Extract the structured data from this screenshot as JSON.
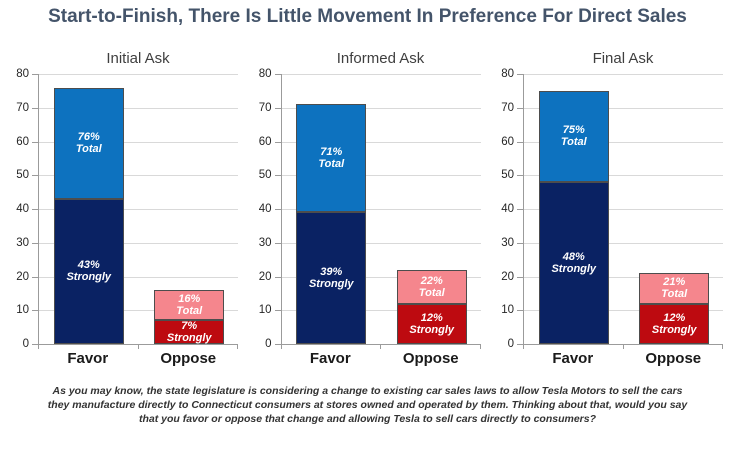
{
  "title": "Start-to-Finish, There Is Little Movement In Preference For Direct Sales",
  "colors": {
    "favor_strong": "#0A2263",
    "favor_light": "#0D72BF",
    "oppose_strong": "#BD0A10",
    "oppose_light": "#F5868D",
    "title": "#44546A"
  },
  "chart_data": [
    {
      "type": "bar",
      "stacked": true,
      "title": "Initial Ask",
      "categories": [
        "Favor",
        "Oppose"
      ],
      "xlabel": "",
      "ylabel": "",
      "ylim": [
        0,
        80
      ],
      "yticks": [
        0,
        10,
        20,
        30,
        40,
        50,
        60,
        70,
        80
      ],
      "grid": true,
      "legend": "none",
      "bars": [
        {
          "category": "Favor",
          "segments": [
            {
              "name": "strongly",
              "from": 0,
              "to": 43,
              "label_pct": "43%",
              "label_word": "Strongly",
              "color_key": "favor_strong"
            },
            {
              "name": "total",
              "from": 43,
              "to": 76,
              "label_pct": "76%",
              "label_word": "Total",
              "color_key": "favor_light"
            }
          ]
        },
        {
          "category": "Oppose",
          "segments": [
            {
              "name": "strongly",
              "from": 0,
              "to": 7,
              "label_pct": "7%",
              "label_word": "Strongly",
              "color_key": "oppose_strong"
            },
            {
              "name": "total",
              "from": 7,
              "to": 16,
              "label_pct": "16%",
              "label_word": "Total",
              "color_key": "oppose_light"
            }
          ]
        }
      ]
    },
    {
      "type": "bar",
      "stacked": true,
      "title": "Informed Ask",
      "categories": [
        "Favor",
        "Oppose"
      ],
      "xlabel": "",
      "ylabel": "",
      "ylim": [
        0,
        80
      ],
      "yticks": [
        0,
        10,
        20,
        30,
        40,
        50,
        60,
        70,
        80
      ],
      "grid": true,
      "legend": "none",
      "bars": [
        {
          "category": "Favor",
          "segments": [
            {
              "name": "strongly",
              "from": 0,
              "to": 39,
              "label_pct": "39%",
              "label_word": "Strongly",
              "color_key": "favor_strong"
            },
            {
              "name": "total",
              "from": 39,
              "to": 71,
              "label_pct": "71%",
              "label_word": "Total",
              "color_key": "favor_light"
            }
          ]
        },
        {
          "category": "Oppose",
          "segments": [
            {
              "name": "strongly",
              "from": 0,
              "to": 12,
              "label_pct": "12%",
              "label_word": "Strongly",
              "color_key": "oppose_strong"
            },
            {
              "name": "total",
              "from": 12,
              "to": 22,
              "label_pct": "22%",
              "label_word": "Total",
              "color_key": "oppose_light"
            }
          ]
        }
      ]
    },
    {
      "type": "bar",
      "stacked": true,
      "title": "Final Ask",
      "categories": [
        "Favor",
        "Oppose"
      ],
      "xlabel": "",
      "ylabel": "",
      "ylim": [
        0,
        80
      ],
      "yticks": [
        0,
        10,
        20,
        30,
        40,
        50,
        60,
        70,
        80
      ],
      "grid": true,
      "legend": "none",
      "bars": [
        {
          "category": "Favor",
          "segments": [
            {
              "name": "strongly",
              "from": 0,
              "to": 48,
              "label_pct": "48%",
              "label_word": "Strongly",
              "color_key": "favor_strong"
            },
            {
              "name": "total",
              "from": 48,
              "to": 75,
              "label_pct": "75%",
              "label_word": "Total",
              "color_key": "favor_light"
            }
          ]
        },
        {
          "category": "Oppose",
          "segments": [
            {
              "name": "strongly",
              "from": 0,
              "to": 12,
              "label_pct": "12%",
              "label_word": "Strongly",
              "color_key": "oppose_strong"
            },
            {
              "name": "total",
              "from": 12,
              "to": 21,
              "label_pct": "21%",
              "label_word": "Total",
              "color_key": "oppose_light"
            }
          ]
        }
      ]
    }
  ],
  "footnote": {
    "lines": [
      "As you may know, the state legislature is considering a change to existing car sales laws to allow Tesla Motors to sell the cars",
      "they manufacture directly to Connecticut consumers at stores owned and operated by them.  Thinking about that, would you say",
      "that you favor or oppose that change and allowing Tesla to sell cars directly to consumers?"
    ]
  }
}
